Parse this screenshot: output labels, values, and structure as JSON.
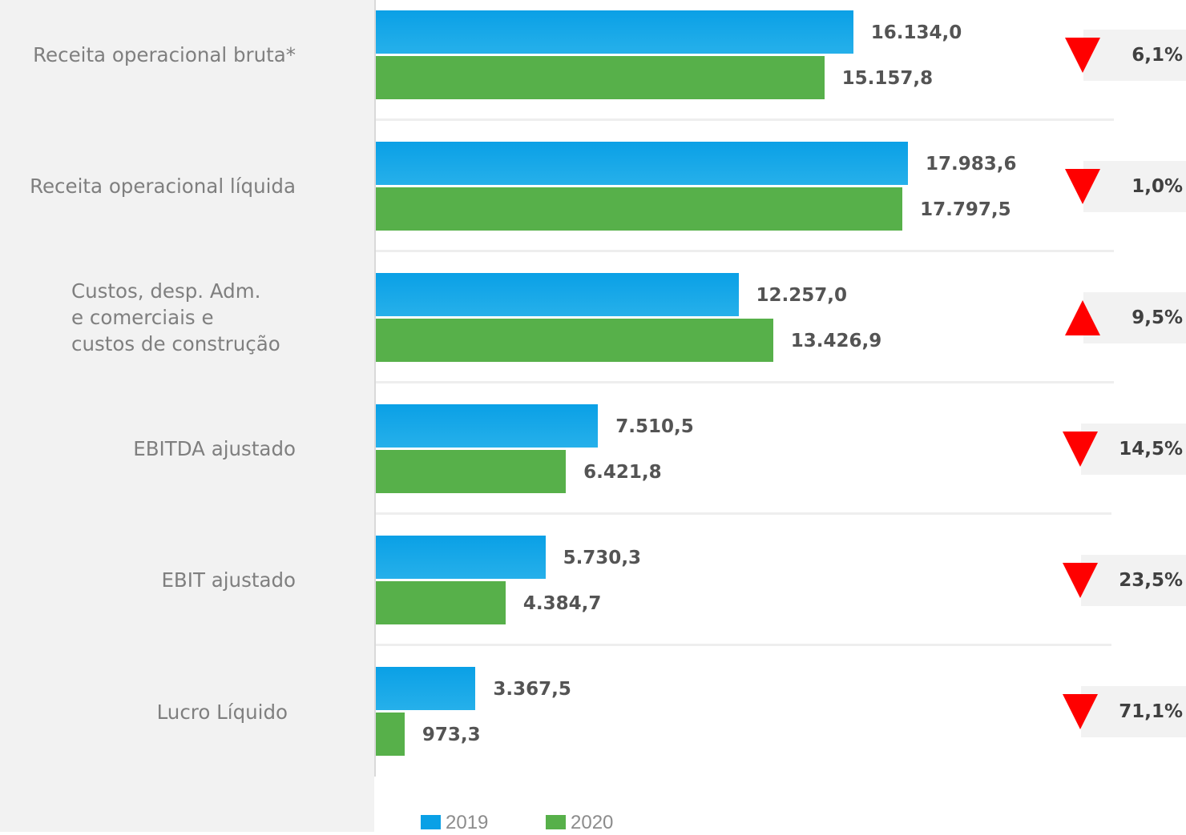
{
  "chart_data": {
    "type": "bar",
    "orientation": "horizontal",
    "categories": [
      "Receita operacional bruta*",
      "Receita operacional líquida",
      "Custos, desp. Adm.\ne comerciais e\ncustos de construção",
      "EBITDA ajustado",
      "EBIT ajustado",
      "Lucro Líquido"
    ],
    "series": [
      {
        "name": "2019",
        "color": "#0aa0e6",
        "values": [
          16134.0,
          17983.6,
          12257.0,
          7510.5,
          5730.3,
          3367.5
        ],
        "labels": [
          "16.134,0",
          "17.983,6",
          "12.257,0",
          "7.510,5",
          "5.730,3",
          "3.367,5"
        ]
      },
      {
        "name": "2020",
        "color": "#57b04a",
        "values": [
          15157.8,
          17797.5,
          13426.9,
          6421.8,
          4384.7,
          973.3
        ],
        "labels": [
          "15.157,8",
          "17.797,5",
          "13.426,9",
          "6.421,8",
          "4.384,7",
          "973,3"
        ]
      }
    ],
    "changes": [
      {
        "text": "6,1%",
        "direction": "down"
      },
      {
        "text": "1,0%",
        "direction": "down"
      },
      {
        "text": "9,5%",
        "direction": "up"
      },
      {
        "text": "14,5%",
        "direction": "down"
      },
      {
        "text": "23,5%",
        "direction": "down"
      },
      {
        "text": "71,1%",
        "direction": "down"
      }
    ],
    "arrow_color": "#ff0000",
    "legend_position": "bottom"
  }
}
